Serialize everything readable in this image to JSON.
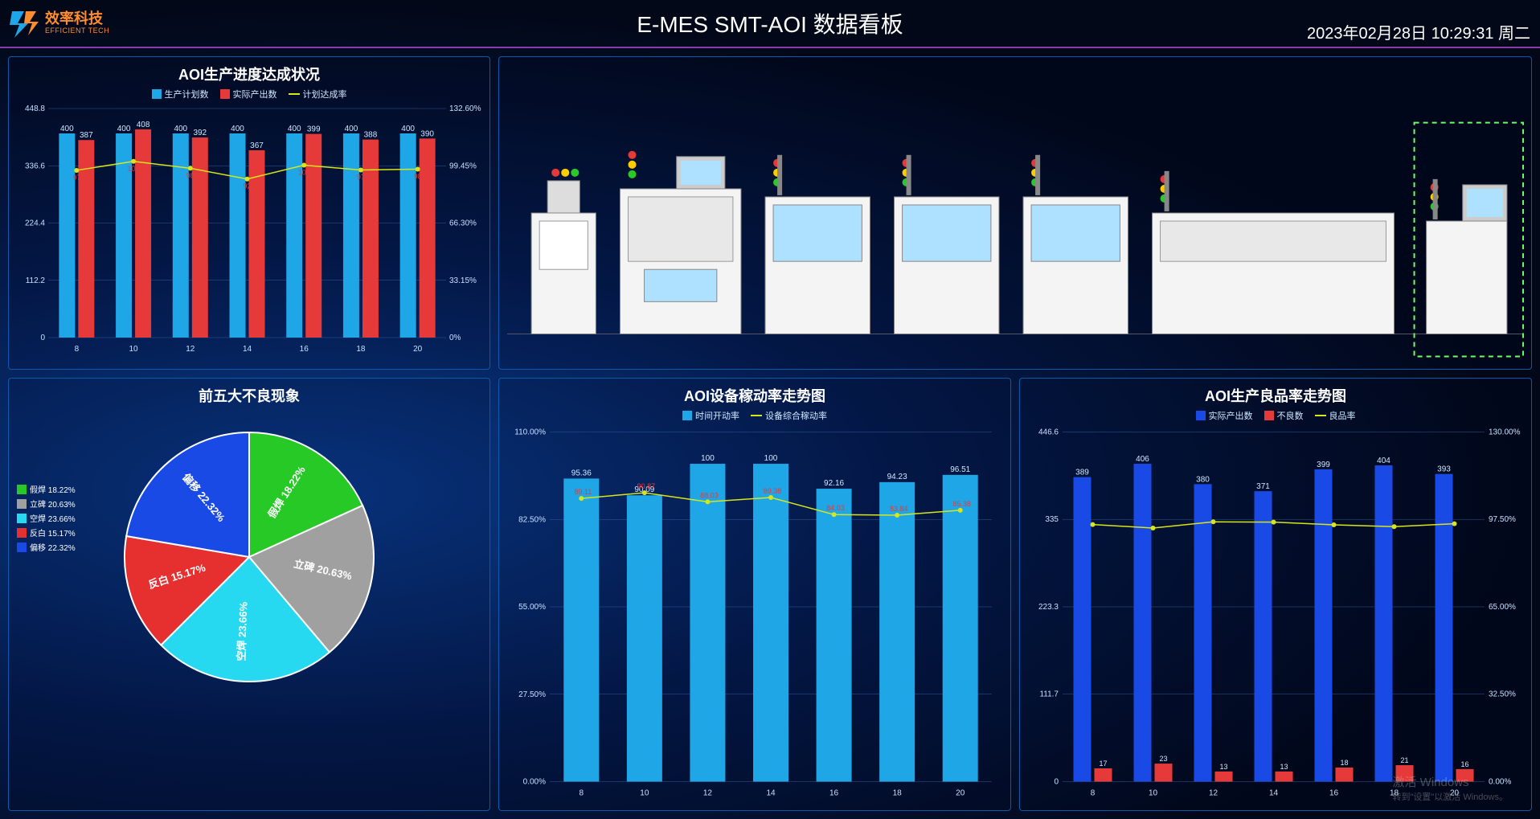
{
  "header": {
    "logo_cn": "效率科技",
    "logo_en": "EFFICIENT TECH",
    "title": "E-MES SMT-AOI 数据看板",
    "datetime": "2023年02月28日 10:29:31 周二"
  },
  "progress_chart": {
    "title": "AOI生产进度达成状况",
    "type": "bar+line",
    "legend": [
      {
        "label": "生产计划数",
        "color": "#1ea6e6"
      },
      {
        "label": "实际产出数",
        "color": "#e63a3a"
      },
      {
        "label": "计划达成率",
        "color": "#d8e619"
      }
    ],
    "categories": [
      "8",
      "10",
      "12",
      "14",
      "16",
      "18",
      "20"
    ],
    "plan": [
      400,
      400,
      400,
      400,
      400,
      400,
      400
    ],
    "actual": [
      387,
      408,
      392,
      367,
      399,
      388,
      390
    ],
    "rate": [
      96.8,
      102,
      98,
      91.8,
      99.8,
      97,
      97.5
    ],
    "y_left": {
      "min": 0,
      "max": 448.8,
      "ticks": [
        0,
        112.2,
        224.4,
        336.6,
        448.8
      ]
    },
    "y_right": {
      "min": 0,
      "max": 132.6,
      "ticks": [
        "0%",
        "33.15%",
        "66.30%",
        "99.45%",
        "132.60%"
      ]
    },
    "bar_color_plan": "#1ea6e6",
    "bar_color_actual": "#e63a3a",
    "line_color": "#d8e619",
    "grid_color": "#2a5a9a"
  },
  "defect_pie": {
    "title": "前五大不良现象",
    "type": "pie",
    "slices": [
      {
        "label": "假焊",
        "pct": 18.22,
        "color": "#26c926",
        "text": "假焊 18.22%"
      },
      {
        "label": "立碑",
        "pct": 20.63,
        "color": "#a0a0a0",
        "text": "立碑 20.63%"
      },
      {
        "label": "空焊",
        "pct": 23.66,
        "color": "#26d9f0",
        "text": "空焊 23.66%"
      },
      {
        "label": "反白",
        "pct": 15.17,
        "color": "#e63030",
        "text": "反白 15.17%"
      },
      {
        "label": "偏移",
        "pct": 22.32,
        "color": "#1a4ae6",
        "text": "偏移 22.32%"
      }
    ],
    "legend_items": [
      {
        "label": "假焊 18.22%",
        "color": "#26c926"
      },
      {
        "label": "立碑 20.63%",
        "color": "#a0a0a0"
      },
      {
        "label": "空焊 23.66%",
        "color": "#26d9f0"
      },
      {
        "label": "反白 15.17%",
        "color": "#e63030"
      },
      {
        "label": "偏移 22.32%",
        "color": "#1a4ae6"
      }
    ]
  },
  "utilization_chart": {
    "title": "AOI设备稼动率走势图",
    "type": "bar+line",
    "legend": [
      {
        "label": "时间开动率",
        "color": "#1ea6e6"
      },
      {
        "label": "设备综合稼动率",
        "color": "#d8e619"
      }
    ],
    "categories": [
      "8",
      "10",
      "12",
      "14",
      "16",
      "18",
      "20"
    ],
    "bars": [
      95.36,
      90.09,
      100,
      100,
      92.16,
      94.23,
      96.51
    ],
    "line": [
      89.11,
      90.87,
      88.03,
      89.38,
      84.03,
      83.84,
      85.38
    ],
    "y_left": {
      "min": 0,
      "max": 110,
      "ticks": [
        "0.00%",
        "27.50%",
        "55.00%",
        "82.50%",
        "110.00%"
      ]
    },
    "bar_color": "#1ea6e6",
    "line_color": "#d8e619",
    "line_marker_color": "#e63a3a"
  },
  "yield_chart": {
    "title": "AOI生产良品率走势图",
    "type": "bar+line",
    "legend": [
      {
        "label": "实际产出数",
        "color": "#1a4ae6"
      },
      {
        "label": "不良数",
        "color": "#e63a3a"
      },
      {
        "label": "良品率",
        "color": "#d8e619"
      }
    ],
    "categories": [
      "8",
      "10",
      "12",
      "14",
      "16",
      "18",
      "20"
    ],
    "output": [
      389,
      406,
      380,
      371,
      399,
      404,
      393
    ],
    "defect": [
      17,
      23,
      13,
      13,
      18,
      21,
      16
    ],
    "rate": [
      95.6,
      94.3,
      96.6,
      96.5,
      95.5,
      94.8,
      95.9
    ],
    "y_left": {
      "min": 0,
      "max": 446.6,
      "ticks": [
        0,
        111.7,
        223.3,
        335.0,
        446.6
      ]
    },
    "y_right": {
      "min": 0,
      "max": 130,
      "ticks": [
        "0.00%",
        "32.50%",
        "65.00%",
        "97.50%",
        "130.00%"
      ]
    },
    "bar_color_output": "#1a4ae6",
    "bar_color_defect": "#e63a3a",
    "line_color": "#d8e619"
  },
  "watermark": {
    "line1": "激活 Windows",
    "line2": "转到\"设置\"以激活 Windows。"
  }
}
